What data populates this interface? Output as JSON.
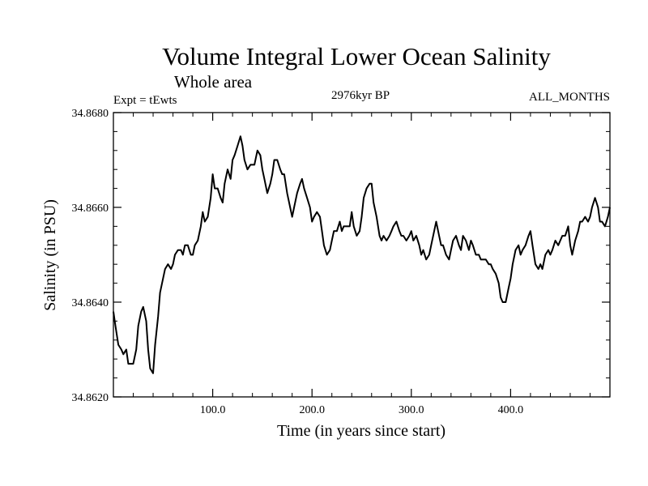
{
  "chart_data": {
    "type": "line",
    "title": "Volume Integral Lower Ocean Salinity",
    "subtitle": "Whole area",
    "left_label": "Expt = tEwts",
    "center_label": "2976kyr BP",
    "right_label": "ALL_MONTHS",
    "xlabel": "Time (in years since start)",
    "ylabel": "Salinity (in PSU)",
    "xlim": [
      0,
      500
    ],
    "ylim": [
      34.862,
      34.868
    ],
    "x_ticks": [
      100,
      200,
      300,
      400
    ],
    "x_tick_labels": [
      "100.0",
      "200.0",
      "300.0",
      "400.0"
    ],
    "y_ticks": [
      34.862,
      34.864,
      34.866,
      34.868
    ],
    "y_tick_labels": [
      "34.8620",
      "34.8640",
      "34.8660",
      "34.8680"
    ],
    "line_color": "#000000",
    "series": [
      {
        "name": "salinity",
        "x": [
          0,
          2,
          5,
          8,
          10,
          13,
          15,
          18,
          20,
          23,
          25,
          28,
          30,
          33,
          35,
          37,
          40,
          42,
          45,
          47,
          50,
          52,
          55,
          58,
          60,
          62,
          65,
          68,
          70,
          72,
          75,
          78,
          80,
          82,
          85,
          88,
          90,
          92,
          95,
          98,
          100,
          102,
          105,
          108,
          110,
          112,
          115,
          118,
          120,
          122,
          125,
          128,
          130,
          132,
          135,
          138,
          140,
          142,
          145,
          148,
          150,
          152,
          155,
          158,
          160,
          162,
          165,
          168,
          170,
          172,
          175,
          178,
          180,
          182,
          185,
          188,
          190,
          192,
          195,
          198,
          200,
          202,
          205,
          208,
          210,
          212,
          215,
          218,
          220,
          222,
          225,
          228,
          230,
          232,
          235,
          238,
          240,
          242,
          245,
          248,
          250,
          252,
          255,
          258,
          260,
          262,
          265,
          268,
          270,
          272,
          275,
          278,
          280,
          282,
          285,
          288,
          290,
          292,
          295,
          298,
          300,
          302,
          305,
          308,
          310,
          312,
          315,
          318,
          320,
          322,
          325,
          328,
          330,
          332,
          335,
          338,
          340,
          342,
          345,
          348,
          350,
          352,
          355,
          358,
          360,
          362,
          365,
          368,
          370,
          372,
          375,
          378,
          380,
          382,
          385,
          388,
          390,
          392,
          395,
          398,
          400,
          402,
          405,
          408,
          410,
          412,
          415,
          418,
          420,
          422,
          425,
          428,
          430,
          432,
          435,
          438,
          440,
          442,
          445,
          448,
          450,
          452,
          455,
          458,
          460,
          462,
          465,
          468,
          470,
          472,
          475,
          478,
          480,
          482,
          485,
          488,
          490,
          492,
          495,
          498,
          500
        ],
        "values": [
          34.8638,
          34.8635,
          34.8631,
          34.863,
          34.8629,
          34.863,
          34.8627,
          34.8627,
          34.8627,
          34.863,
          34.8635,
          34.8638,
          34.8639,
          34.8636,
          34.863,
          34.8626,
          34.8625,
          34.8631,
          34.8637,
          34.8642,
          34.8645,
          34.8647,
          34.8648,
          34.8647,
          34.8648,
          34.865,
          34.8651,
          34.8651,
          34.865,
          34.8652,
          34.8652,
          34.865,
          34.865,
          34.8652,
          34.8653,
          34.8656,
          34.8659,
          34.8657,
          34.8658,
          34.8662,
          34.8667,
          34.8664,
          34.8664,
          34.8662,
          34.8661,
          34.8665,
          34.8668,
          34.8666,
          34.867,
          34.8671,
          34.8673,
          34.8675,
          34.8673,
          34.867,
          34.8668,
          34.8669,
          34.8669,
          34.8669,
          34.8672,
          34.8671,
          34.8668,
          34.8666,
          34.8663,
          34.8665,
          34.8667,
          34.867,
          34.867,
          34.8668,
          34.8667,
          34.8667,
          34.8663,
          34.866,
          34.8658,
          34.866,
          34.8663,
          34.8665,
          34.8666,
          34.8664,
          34.8662,
          34.866,
          34.8657,
          34.8658,
          34.8659,
          34.8658,
          34.8655,
          34.8652,
          34.865,
          34.8651,
          34.8653,
          34.8655,
          34.8655,
          34.8657,
          34.8655,
          34.8656,
          34.8656,
          34.8656,
          34.8659,
          34.8656,
          34.8654,
          34.8655,
          34.8658,
          34.8662,
          34.8664,
          34.8665,
          34.8665,
          34.8661,
          34.8658,
          34.8654,
          34.8653,
          34.8654,
          34.8653,
          34.8654,
          34.8655,
          34.8656,
          34.8657,
          34.8655,
          34.8654,
          34.8654,
          34.8653,
          34.8654,
          34.8655,
          34.8653,
          34.8654,
          34.8652,
          34.865,
          34.8651,
          34.8649,
          34.865,
          34.8652,
          34.8654,
          34.8657,
          34.8654,
          34.8652,
          34.8652,
          34.865,
          34.8649,
          34.8651,
          34.8653,
          34.8654,
          34.8652,
          34.8651,
          34.8654,
          34.8653,
          34.8651,
          34.8653,
          34.8652,
          34.865,
          34.865,
          34.8649,
          34.8649,
          34.8649,
          34.8648,
          34.8648,
          34.8647,
          34.8646,
          34.8644,
          34.8641,
          34.864,
          34.864,
          34.8643,
          34.8645,
          34.8648,
          34.8651,
          34.8652,
          34.865,
          34.8651,
          34.8652,
          34.8654,
          34.8655,
          34.8652,
          34.8648,
          34.8647,
          34.8648,
          34.8647,
          34.865,
          34.8651,
          34.865,
          34.8651,
          34.8653,
          34.8652,
          34.8653,
          34.8654,
          34.8654,
          34.8656,
          34.8652,
          34.865,
          34.8653,
          34.8655,
          34.8657,
          34.8657,
          34.8658,
          34.8657,
          34.8658,
          34.866,
          34.8662,
          34.866,
          34.8657,
          34.8657,
          34.8656,
          34.8658,
          34.866
        ]
      }
    ]
  }
}
